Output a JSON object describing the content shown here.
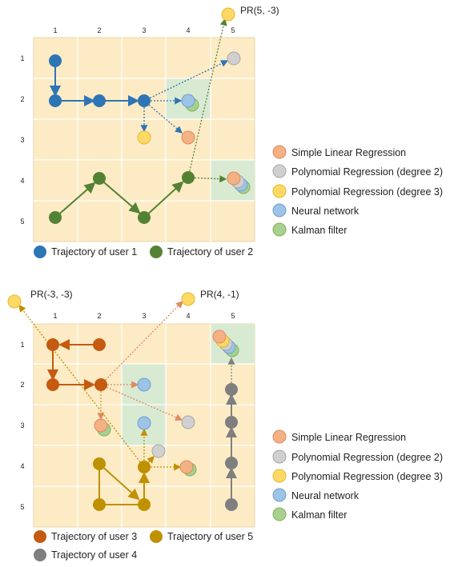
{
  "top": {
    "col_labels": [
      "1",
      "2",
      "3",
      "4",
      "5"
    ],
    "row_labels": [
      "1",
      "2",
      "3",
      "4",
      "5"
    ],
    "annotation": "PR(5, -3)",
    "legend_users": [
      {
        "label": "Trajectory of user 1",
        "color": "#2e75b6"
      },
      {
        "label": "Trajectory of user 2",
        "color": "#548235"
      }
    ]
  },
  "bottom": {
    "col_labels": [
      "1",
      "2",
      "3",
      "4",
      "5"
    ],
    "row_labels": [
      "1",
      "2",
      "3",
      "4",
      "5"
    ],
    "annotation_left": "PR(-3, -3)",
    "annotation_right": "PR(4, -1)",
    "legend_users": [
      {
        "label": "Trajectory of user 3",
        "color": "#c55a11"
      },
      {
        "label": "Trajectory of user 5",
        "color": "#bf9000"
      },
      {
        "label": "Trajectory of user 4",
        "color": "#7f7f7f"
      }
    ]
  },
  "methods_legend": [
    {
      "label": "Simple Linear Regression",
      "color": "#f4b183",
      "stroke": "#e08a60"
    },
    {
      "label": "Polynomial Regression (degree 2)",
      "color": "#d0d0d0",
      "stroke": "#a8a8a8"
    },
    {
      "label": "Polynomial Regression (degree 3)",
      "color": "#ffd966",
      "stroke": "#e0b830"
    },
    {
      "label": "Neural network",
      "color": "#9dc3e6",
      "stroke": "#6f9fcc"
    },
    {
      "label": "Kalman filter",
      "color": "#a9d18e",
      "stroke": "#7fb060"
    }
  ],
  "colors": {
    "grid_bg": "#fcebc4",
    "grid_line": "#ffffff",
    "highlight": "#d9ead3"
  }
}
